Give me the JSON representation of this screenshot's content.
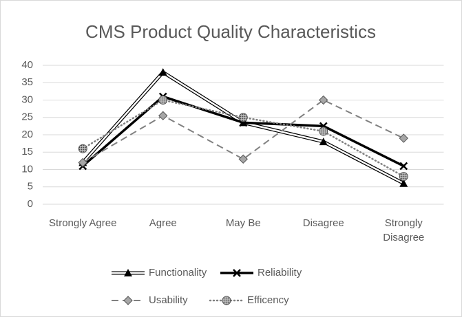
{
  "chart_data": {
    "type": "line",
    "title": "CMS Product Quality Characteristics",
    "categories": [
      "Strongly Agree",
      "Agree",
      "May Be",
      "Disagree",
      "Strongly Disagree"
    ],
    "series": [
      {
        "name": "Functionality",
        "color": "#000000",
        "values": [
          12,
          38,
          23.5,
          18,
          6
        ]
      },
      {
        "name": "Reliability",
        "color": "#000000",
        "values": [
          11,
          31,
          23.5,
          22.5,
          11
        ]
      },
      {
        "name": "Usability",
        "color": "#808080",
        "values": [
          12,
          25.5,
          13,
          30,
          19
        ]
      },
      {
        "name": "Efficency",
        "color": "#808080",
        "values": [
          16,
          30,
          25,
          21,
          8
        ]
      }
    ],
    "ylim": [
      0,
      40
    ],
    "yticks": [
      0,
      5,
      10,
      15,
      20,
      25,
      30,
      35,
      40
    ],
    "grid": true,
    "legend": "bottom"
  }
}
